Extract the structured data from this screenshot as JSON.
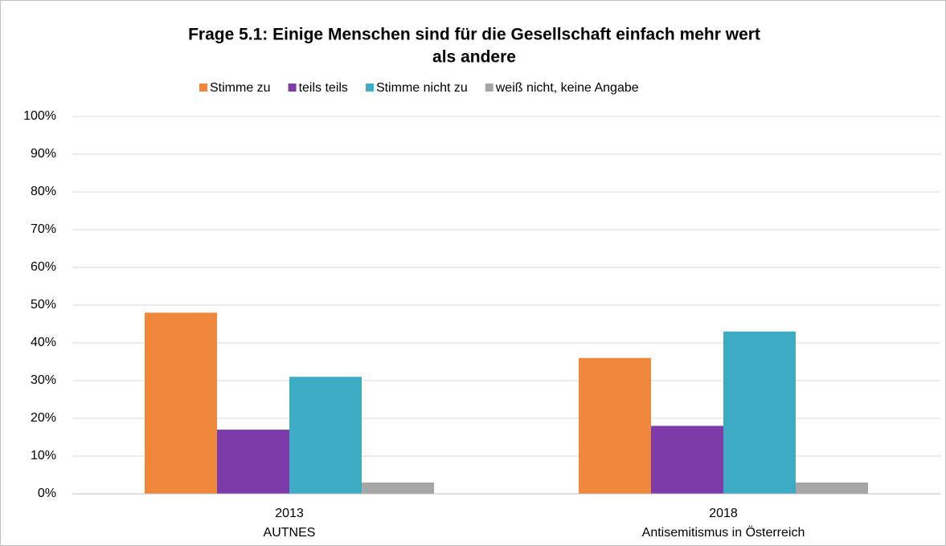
{
  "chart_data": {
    "type": "bar",
    "title": [
      "Frage 5.1: Einige Menschen sind für die Gesellschaft einfach mehr wert",
      "als andere"
    ],
    "categories": [
      [
        "2013",
        "AUTNES"
      ],
      [
        "2018",
        "Antisemitismus in Österreich"
      ]
    ],
    "series": [
      {
        "name": "Stimme zu",
        "color": "#f0883c",
        "values": [
          48,
          36
        ]
      },
      {
        "name": "teils teils",
        "color": "#7d3aa8",
        "values": [
          17,
          18
        ]
      },
      {
        "name": "Stimme nicht zu",
        "color": "#3eabc5",
        "values": [
          31,
          43
        ]
      },
      {
        "name": "weiß nicht, keine Angabe",
        "color": "#a6a6a6",
        "values": [
          3,
          3
        ]
      }
    ],
    "ylim": [
      0,
      100
    ],
    "yticks": [
      {
        "value": 0,
        "label": "0%"
      },
      {
        "value": 10,
        "label": "10%"
      },
      {
        "value": 20,
        "label": "20%"
      },
      {
        "value": 30,
        "label": "30%"
      },
      {
        "value": 40,
        "label": "40%"
      },
      {
        "value": 50,
        "label": "50%"
      },
      {
        "value": 60,
        "label": "60%"
      },
      {
        "value": 70,
        "label": "70%"
      },
      {
        "value": 80,
        "label": "80%"
      },
      {
        "value": 90,
        "label": "90%"
      },
      {
        "value": 100,
        "label": "100%"
      }
    ],
    "grid": true,
    "legend": "top"
  }
}
